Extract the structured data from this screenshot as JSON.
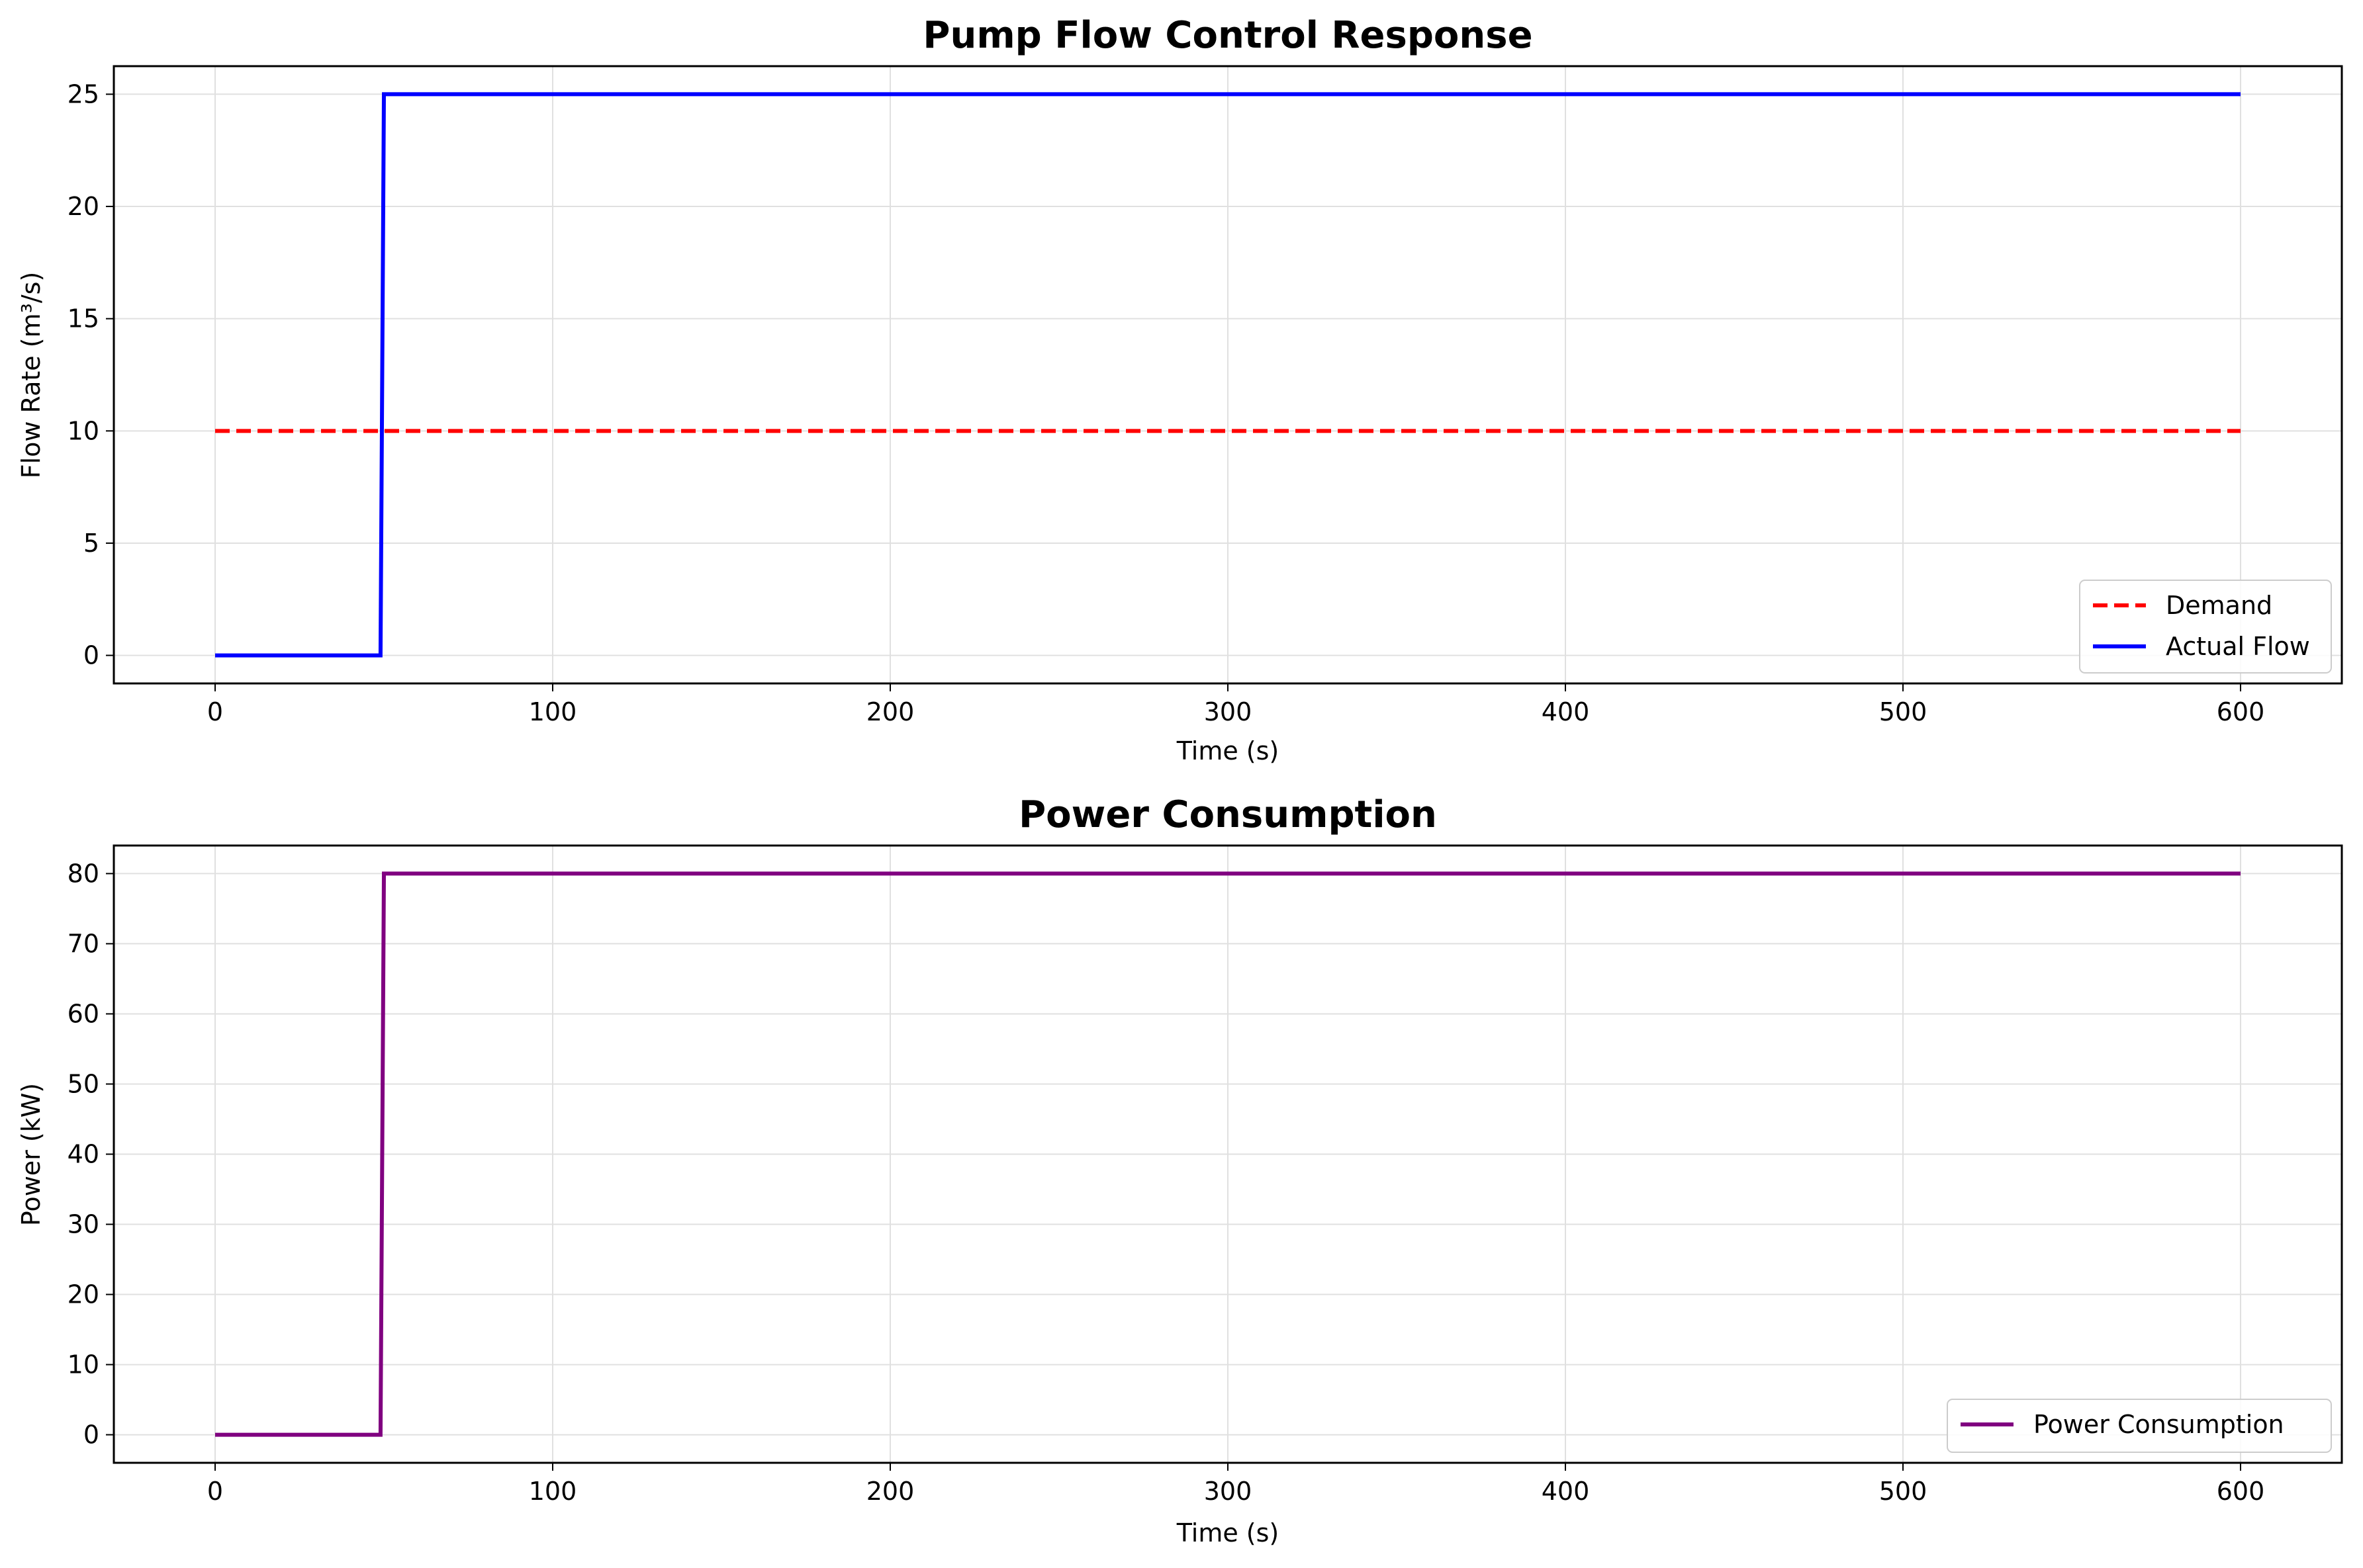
{
  "chart_data": [
    {
      "type": "line",
      "title": "Pump Flow Control Response",
      "xlabel": "Time (s)",
      "ylabel": "Flow Rate (m³/s)",
      "xlim": [
        -30,
        630
      ],
      "ylim": [
        -1.25,
        26.25
      ],
      "xticks": [
        0,
        100,
        200,
        300,
        400,
        500,
        600
      ],
      "yticks": [
        0,
        5,
        10,
        15,
        20,
        25
      ],
      "grid": true,
      "legend_position": "lower-right",
      "series": [
        {
          "name": "Demand",
          "color": "#ff0000",
          "style": "dashed",
          "x": [
            0,
            600
          ],
          "y": [
            10,
            10
          ]
        },
        {
          "name": "Actual Flow",
          "color": "#0000ff",
          "style": "solid",
          "x": [
            0,
            49,
            50,
            600
          ],
          "y": [
            0,
            0,
            25,
            25
          ]
        }
      ]
    },
    {
      "type": "line",
      "title": "Power Consumption",
      "xlabel": "Time (s)",
      "ylabel": "Power (kW)",
      "xlim": [
        -30,
        630
      ],
      "ylim": [
        -4,
        84
      ],
      "xticks": [
        0,
        100,
        200,
        300,
        400,
        500,
        600
      ],
      "yticks": [
        0,
        10,
        20,
        30,
        40,
        50,
        60,
        70,
        80
      ],
      "grid": true,
      "legend_position": "lower-right",
      "series": [
        {
          "name": "Power Consumption",
          "color": "#800080",
          "style": "solid",
          "x": [
            0,
            49,
            50,
            600
          ],
          "y": [
            0,
            0,
            80,
            80
          ]
        }
      ]
    }
  ]
}
